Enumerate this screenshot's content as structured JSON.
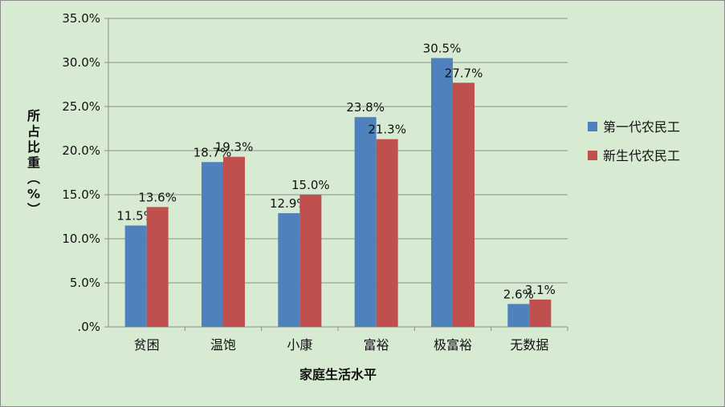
{
  "chart_data": {
    "type": "bar",
    "categories": [
      "贫困",
      "温饱",
      "小康",
      "富裕",
      "极富裕",
      "无数据"
    ],
    "series": [
      {
        "name": "第一代农民工",
        "values": [
          11.5,
          18.7,
          12.9,
          23.8,
          30.5,
          2.6
        ],
        "labels": [
          "11.5%",
          "18.7%",
          "12.9%",
          "23.8%",
          "30.5%",
          "2.6%"
        ],
        "color": "#4f81bd"
      },
      {
        "name": "新生代农民工",
        "values": [
          13.6,
          19.3,
          15.0,
          21.3,
          27.7,
          3.1
        ],
        "labels": [
          "13.6%",
          "19.3%",
          "15.0%",
          "21.3%",
          "27.7%",
          "3.1%"
        ],
        "color": "#c0504d"
      }
    ],
    "xlabel": "家庭生活水平",
    "ylabel": "所占比重（%）",
    "ylim": [
      0,
      35
    ],
    "yticks": [
      0,
      5,
      10,
      15,
      20,
      25,
      30,
      35
    ],
    "ytick_labels": [
      ".0%",
      "5.0%",
      "10.0%",
      "15.0%",
      "20.0%",
      "25.0%",
      "30.0%",
      "35.0%"
    ],
    "grid": true,
    "legend_position": "right"
  }
}
